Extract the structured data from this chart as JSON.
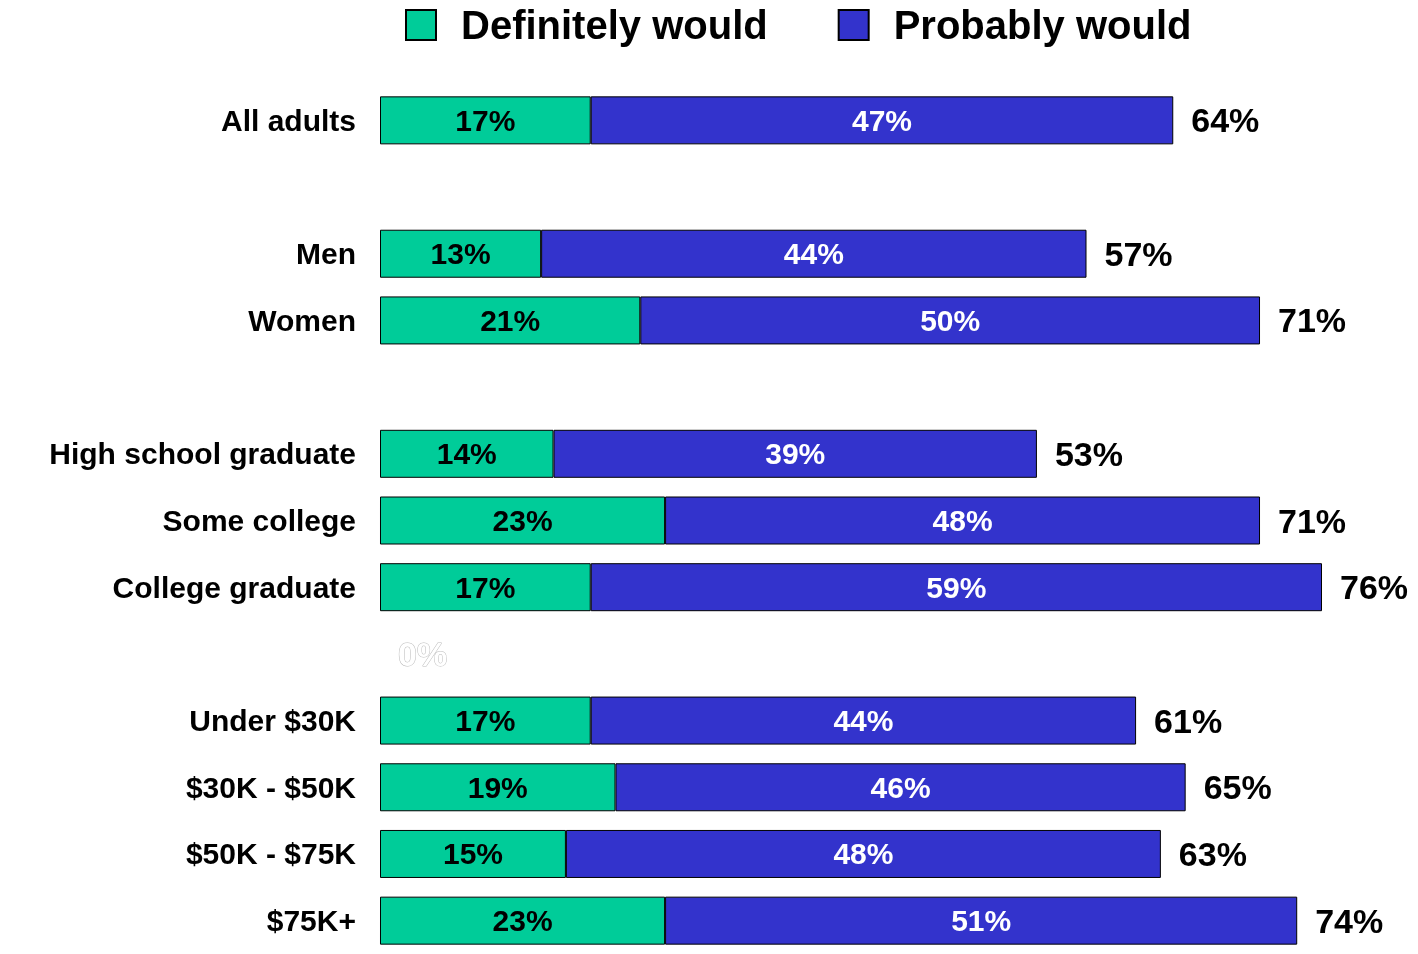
{
  "chart_data": {
    "type": "bar",
    "orientation": "horizontal",
    "stacked": true,
    "legend": "top",
    "tick_labels": "y",
    "categories": [
      "All adults",
      null,
      "Men",
      "Women",
      null,
      "High school graduate",
      "Some college",
      "College graduate",
      null,
      "Under $30K",
      "$30K - $50K",
      "$50K - $75K",
      "$75K+"
    ],
    "series": [
      {
        "name": "Definitely would",
        "color": "#00cc99",
        "values": [
          17,
          null,
          13,
          21,
          null,
          14,
          23,
          17,
          null,
          17,
          19,
          15,
          23
        ],
        "value_labels": [
          "17%",
          null,
          "13%",
          "21%",
          null,
          "14%",
          "23%",
          "17%",
          null,
          "17%",
          "19%",
          "15%",
          "23%"
        ]
      },
      {
        "name": "Probably would",
        "color": "#3333cc",
        "values": [
          47,
          null,
          44,
          50,
          null,
          39,
          48,
          59,
          null,
          44,
          46,
          48,
          51
        ],
        "value_labels": [
          "47%",
          null,
          "44%",
          "50%",
          null,
          "39%",
          "48%",
          "59%",
          null,
          "44%",
          "46%",
          "48%",
          "51%"
        ]
      }
    ],
    "totals": [
      "64%",
      null,
      "57%",
      "71%",
      null,
      "53%",
      "71%",
      "76%",
      "0%",
      "61%",
      "65%",
      "63%",
      "74%"
    ]
  }
}
